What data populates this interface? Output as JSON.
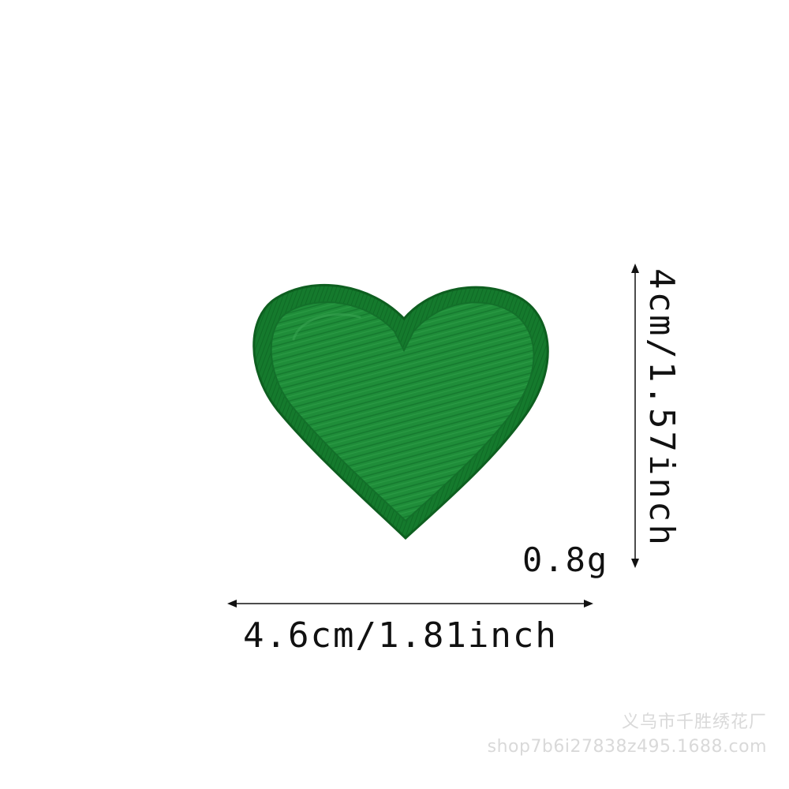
{
  "product": {
    "name_icon": "green-heart-embroidered-patch",
    "fill_color": "#1e8a37",
    "border_color": "#136e28"
  },
  "dimensions": {
    "width_label": "4.6cm/1.81inch",
    "height_label": "4cm/1.57inch",
    "weight_label": "0.8g"
  },
  "watermark": {
    "line1": "义乌市千胜绣花厂",
    "line2": "shop7b6i27838z495.1688.com"
  }
}
